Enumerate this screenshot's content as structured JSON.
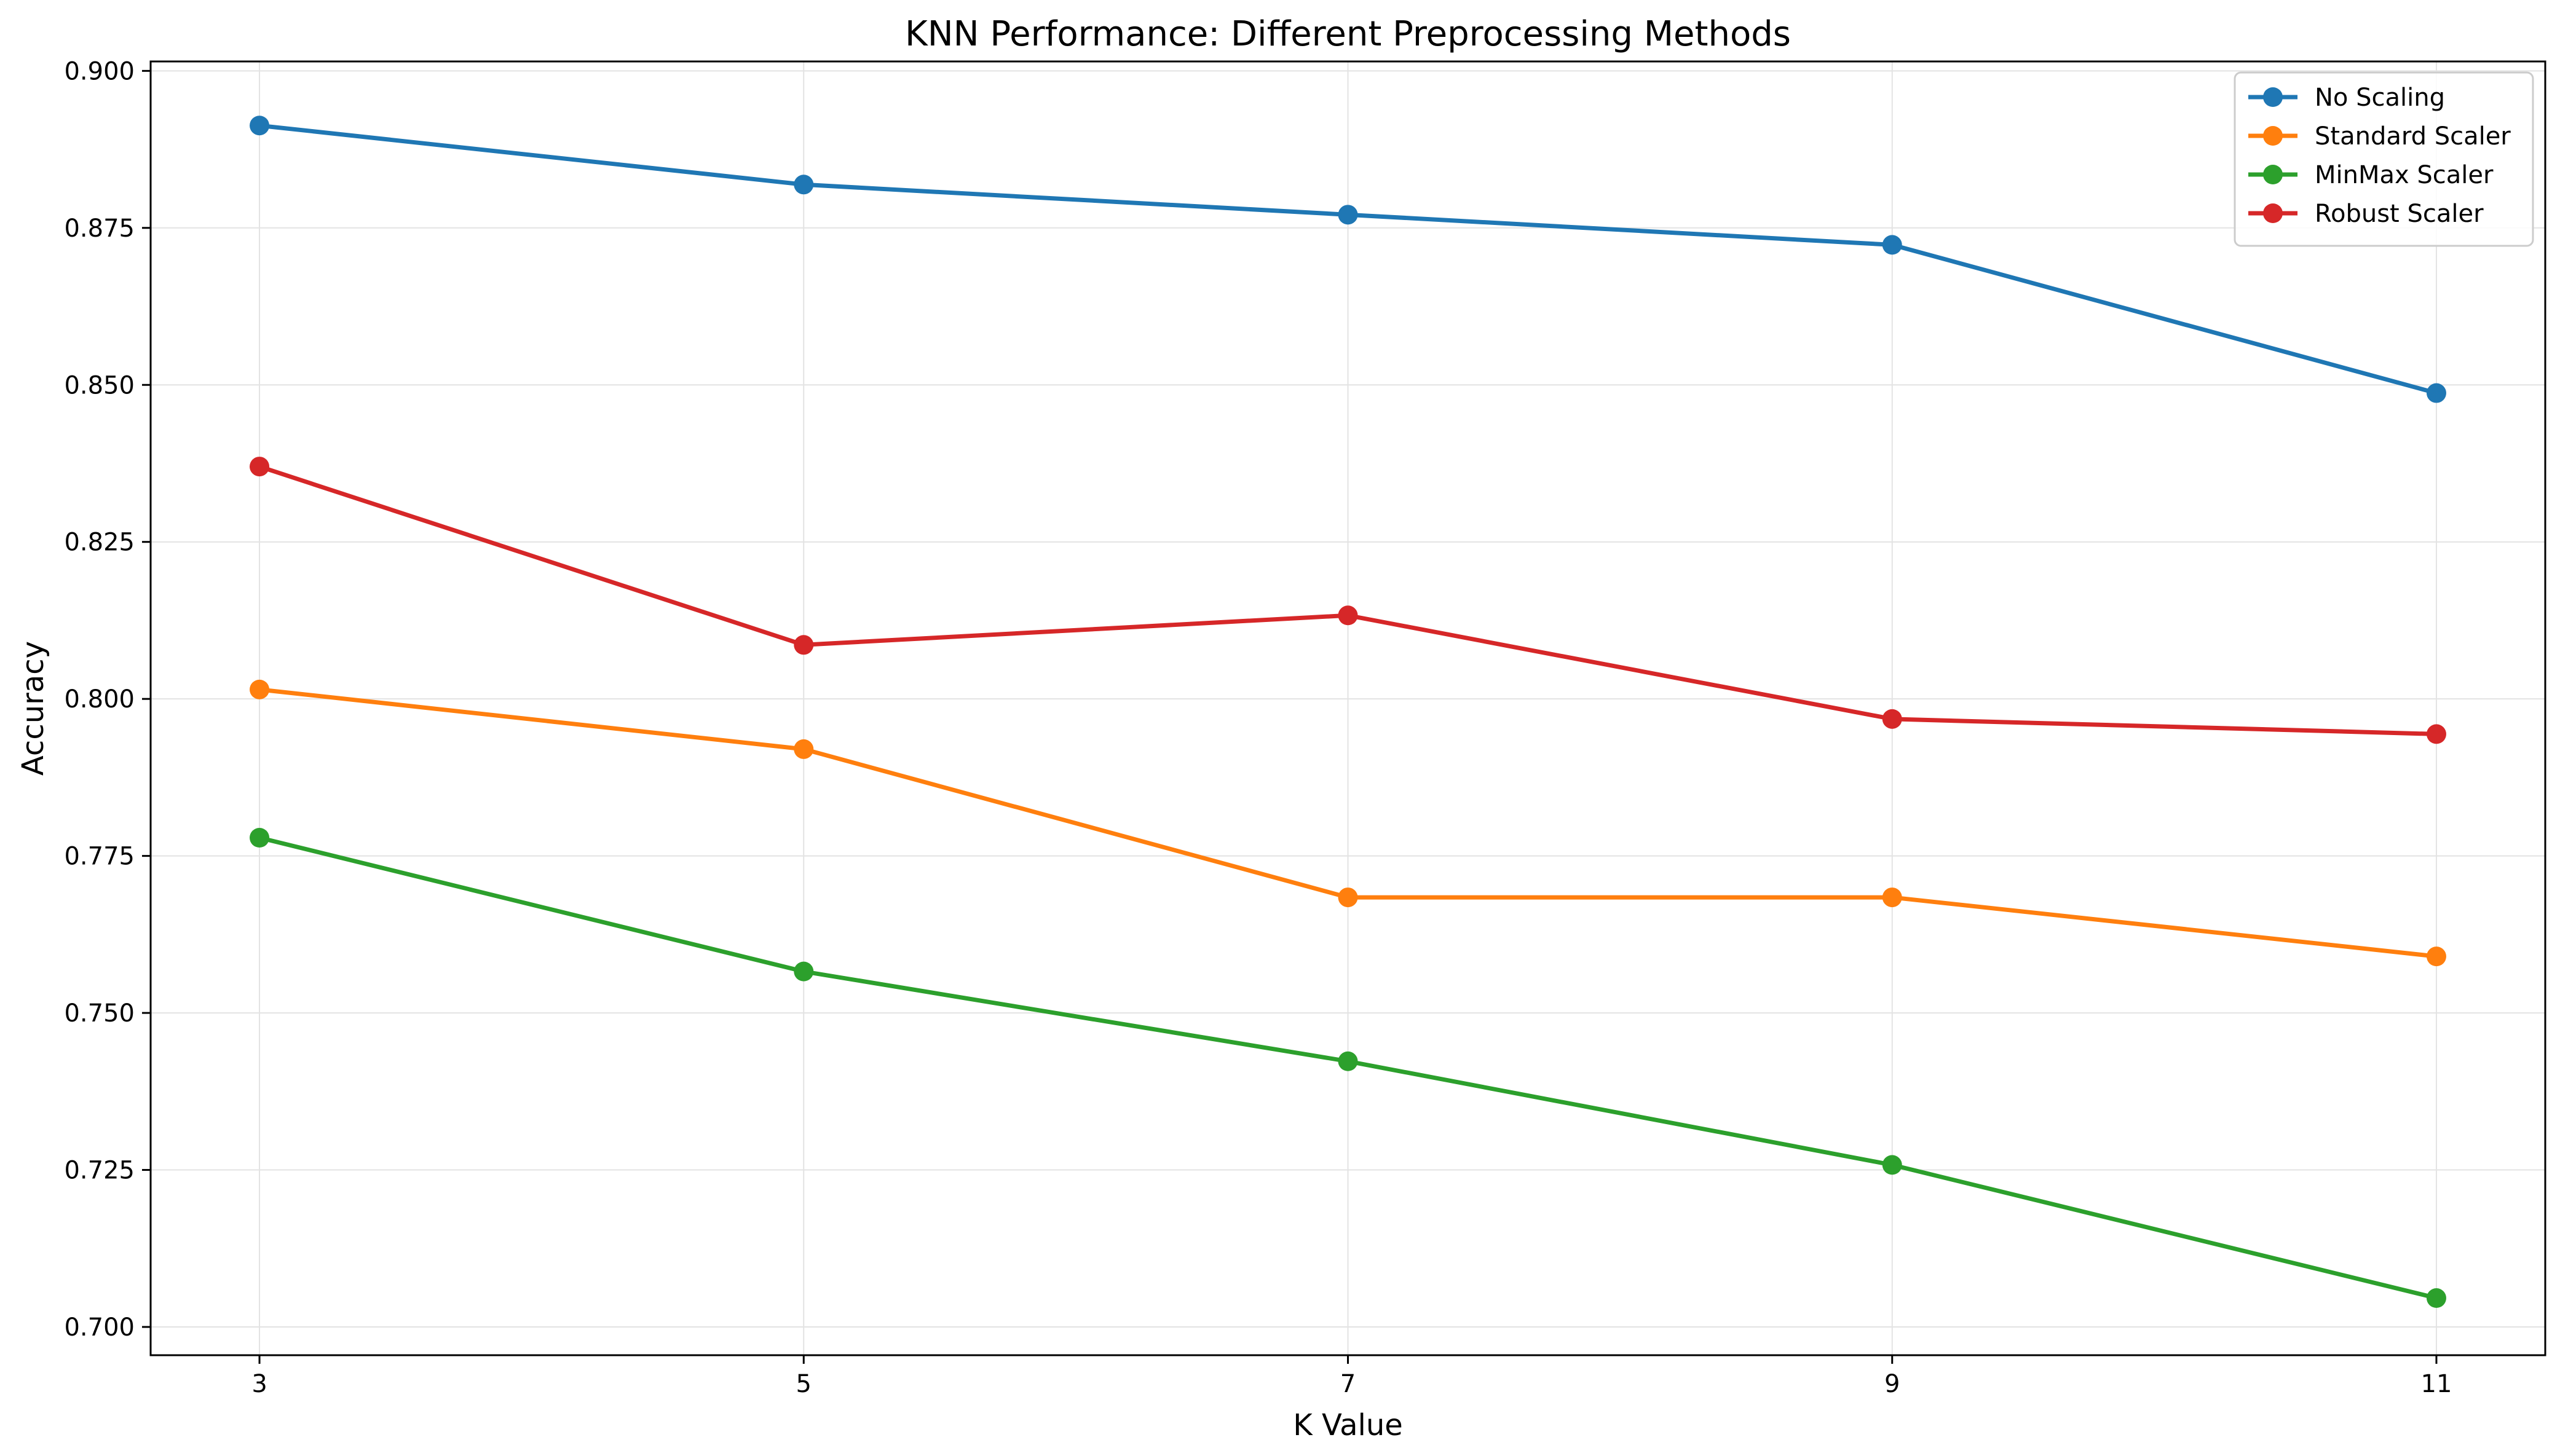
{
  "chart_data": {
    "type": "line",
    "title": "KNN Performance: Different Preprocessing Methods",
    "xlabel": "K Value",
    "ylabel": "Accuracy",
    "x": [
      3,
      5,
      7,
      9,
      11
    ],
    "xticks": [
      "3",
      "5",
      "7",
      "9",
      "11"
    ],
    "xlim": [
      2.6,
      11.4
    ],
    "ylim": [
      0.6955,
      0.9015
    ],
    "yticks": [
      "0.700",
      "0.725",
      "0.750",
      "0.775",
      "0.800",
      "0.825",
      "0.850",
      "0.875",
      "0.900"
    ],
    "grid": true,
    "legend_position": "top-right",
    "series": [
      {
        "name": "No Scaling",
        "color": "#1f77b4",
        "values": [
          0.8913,
          0.8819,
          0.8771,
          0.8723,
          0.8487
        ]
      },
      {
        "name": "Standard Scaler",
        "color": "#ff7f0e",
        "values": [
          0.8015,
          0.792,
          0.7684,
          0.7684,
          0.759
        ]
      },
      {
        "name": "MinMax Scaler",
        "color": "#2ca02c",
        "values": [
          0.7779,
          0.7566,
          0.7423,
          0.7258,
          0.7046
        ]
      },
      {
        "name": "Robust Scaler",
        "color": "#d62728",
        "values": [
          0.837,
          0.8086,
          0.8133,
          0.7968,
          0.7944
        ]
      }
    ]
  }
}
